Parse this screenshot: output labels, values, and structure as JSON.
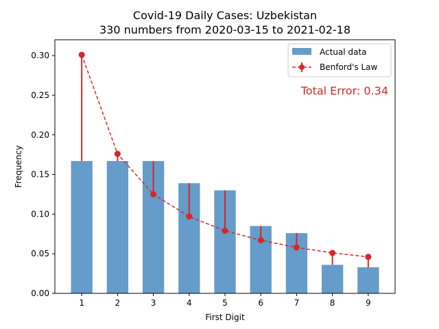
{
  "chart_data": {
    "type": "bar",
    "title_line1": "Covid-19 Daily Cases: Uzbekistan",
    "title_line2": "330 numbers from 2020-03-15 to 2021-02-18",
    "xlabel": "First Digit",
    "ylabel": "Frequency",
    "categories": [
      "1",
      "2",
      "3",
      "4",
      "5",
      "6",
      "7",
      "8",
      "9"
    ],
    "x": [
      1,
      2,
      3,
      4,
      5,
      6,
      7,
      8,
      9
    ],
    "series": [
      {
        "name": "Actual data",
        "kind": "bar",
        "color": "#4a8bbf",
        "values": [
          0.167,
          0.167,
          0.167,
          0.139,
          0.13,
          0.085,
          0.076,
          0.036,
          0.033
        ]
      },
      {
        "name": "Benford's Law",
        "kind": "line-dashed-markers",
        "color": "#d62728",
        "values": [
          0.301,
          0.176,
          0.125,
          0.097,
          0.079,
          0.067,
          0.058,
          0.051,
          0.046
        ]
      }
    ],
    "xlim": [
      0.25,
      9.75
    ],
    "ylim": [
      0,
      0.32
    ],
    "yticks": [
      0.0,
      0.05,
      0.1,
      0.15,
      0.2,
      0.25,
      0.3
    ],
    "ytick_labels": [
      "0.00",
      "0.05",
      "0.10",
      "0.15",
      "0.20",
      "0.25",
      "0.30"
    ],
    "grid": false,
    "legend_position": "top-right",
    "annotation": {
      "text": "Total Error: 0.34",
      "color": "#d62728"
    }
  }
}
